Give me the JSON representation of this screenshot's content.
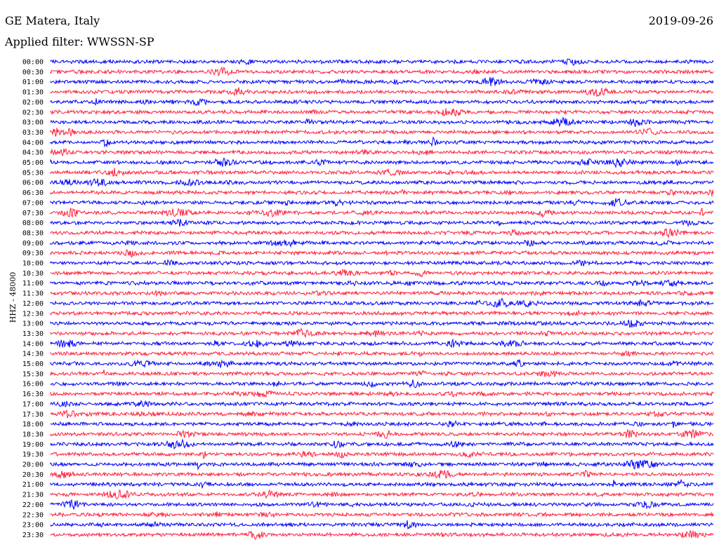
{
  "header": {
    "station": "GE Matera, Italy",
    "date": "2019-09-26",
    "filter": "Applied filter: WWSSN-SP"
  },
  "chart_data": {
    "type": "line",
    "title": "GE Matera, Italy",
    "subtitle": "Applied filter: WWSSN-SP",
    "date": "2019-09-26",
    "ylabel": "HHZ - 48000",
    "row_labels": [
      "00:00",
      "00:30",
      "01:00",
      "01:30",
      "02:00",
      "02:30",
      "03:00",
      "03:30",
      "04:00",
      "04:30",
      "05:00",
      "05:30",
      "06:00",
      "06:30",
      "07:00",
      "07:30",
      "08:00",
      "08:30",
      "09:00",
      "09:30",
      "10:00",
      "10:30",
      "11:00",
      "11:30",
      "12:00",
      "12:30",
      "13:00",
      "13:30",
      "14:00",
      "14:30",
      "15:00",
      "15:30",
      "16:00",
      "16:30",
      "17:00",
      "17:30",
      "18:00",
      "18:30",
      "19:00",
      "19:30",
      "20:00",
      "20:30",
      "21:00",
      "21:30",
      "22:00",
      "22:30",
      "23:00",
      "23:30"
    ],
    "row_colors": [
      "#0000ff",
      "#ff1f3f"
    ],
    "grid": false,
    "legend": "none"
  }
}
